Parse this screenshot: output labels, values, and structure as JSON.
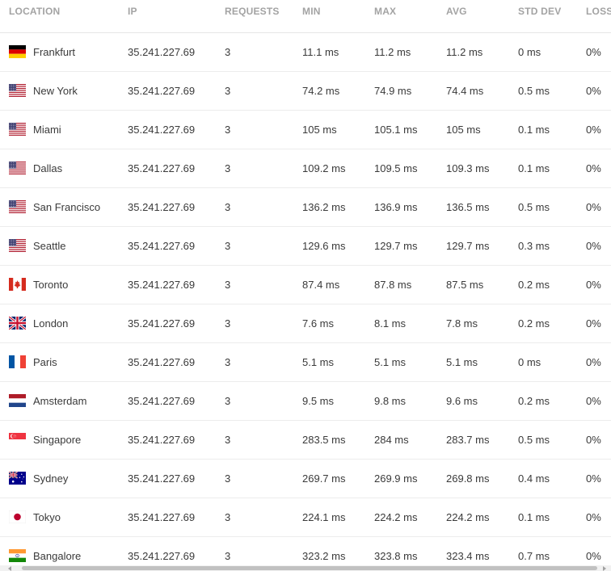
{
  "table": {
    "headers": {
      "location": "LOCATION",
      "ip": "IP",
      "requests": "REQUESTS",
      "min": "MIN",
      "max": "MAX",
      "avg": "AVG",
      "std_dev": "STD DEV",
      "loss": "LOSS"
    },
    "rows": [
      {
        "flag": "flag-germany-icon",
        "location": "Frankfurt",
        "ip": "35.241.227.69",
        "requests": "3",
        "min": "11.1 ms",
        "max": "11.2 ms",
        "avg": "11.2 ms",
        "std_dev": "0 ms",
        "loss": "0%"
      },
      {
        "flag": "flag-usa-icon",
        "location": "New York",
        "ip": "35.241.227.69",
        "requests": "3",
        "min": "74.2 ms",
        "max": "74.9 ms",
        "avg": "74.4 ms",
        "std_dev": "0.5 ms",
        "loss": "0%"
      },
      {
        "flag": "flag-usa-icon",
        "location": "Miami",
        "ip": "35.241.227.69",
        "requests": "3",
        "min": "105 ms",
        "max": "105.1 ms",
        "avg": "105 ms",
        "std_dev": "0.1 ms",
        "loss": "0%"
      },
      {
        "flag": "flag-usa-icon",
        "location": "Dallas",
        "ip": "35.241.227.69",
        "requests": "3",
        "min": "109.2 ms",
        "max": "109.5 ms",
        "avg": "109.3 ms",
        "std_dev": "0.1 ms",
        "loss": "0%"
      },
      {
        "flag": "flag-usa-icon",
        "location": "San Francisco",
        "ip": "35.241.227.69",
        "requests": "3",
        "min": "136.2 ms",
        "max": "136.9 ms",
        "avg": "136.5 ms",
        "std_dev": "0.5 ms",
        "loss": "0%"
      },
      {
        "flag": "flag-usa-icon",
        "location": "Seattle",
        "ip": "35.241.227.69",
        "requests": "3",
        "min": "129.6 ms",
        "max": "129.7 ms",
        "avg": "129.7 ms",
        "std_dev": "0.3 ms",
        "loss": "0%"
      },
      {
        "flag": "flag-canada-icon",
        "location": "Toronto",
        "ip": "35.241.227.69",
        "requests": "3",
        "min": "87.4 ms",
        "max": "87.8 ms",
        "avg": "87.5 ms",
        "std_dev": "0.2 ms",
        "loss": "0%"
      },
      {
        "flag": "flag-uk-icon",
        "location": "London",
        "ip": "35.241.227.69",
        "requests": "3",
        "min": "7.6 ms",
        "max": "8.1 ms",
        "avg": "7.8 ms",
        "std_dev": "0.2 ms",
        "loss": "0%"
      },
      {
        "flag": "flag-france-icon",
        "location": "Paris",
        "ip": "35.241.227.69",
        "requests": "3",
        "min": "5.1 ms",
        "max": "5.1 ms",
        "avg": "5.1 ms",
        "std_dev": "0 ms",
        "loss": "0%"
      },
      {
        "flag": "flag-netherlands-icon",
        "location": "Amsterdam",
        "ip": "35.241.227.69",
        "requests": "3",
        "min": "9.5 ms",
        "max": "9.8 ms",
        "avg": "9.6 ms",
        "std_dev": "0.2 ms",
        "loss": "0%"
      },
      {
        "flag": "flag-singapore-icon",
        "location": "Singapore",
        "ip": "35.241.227.69",
        "requests": "3",
        "min": "283.5 ms",
        "max": "284 ms",
        "avg": "283.7 ms",
        "std_dev": "0.5 ms",
        "loss": "0%"
      },
      {
        "flag": "flag-australia-icon",
        "location": "Sydney",
        "ip": "35.241.227.69",
        "requests": "3",
        "min": "269.7 ms",
        "max": "269.9 ms",
        "avg": "269.8 ms",
        "std_dev": "0.4 ms",
        "loss": "0%"
      },
      {
        "flag": "flag-japan-icon",
        "location": "Tokyo",
        "ip": "35.241.227.69",
        "requests": "3",
        "min": "224.1 ms",
        "max": "224.2 ms",
        "avg": "224.2 ms",
        "std_dev": "0.1 ms",
        "loss": "0%"
      },
      {
        "flag": "flag-india-icon",
        "location": "Bangalore",
        "ip": "35.241.227.69",
        "requests": "3",
        "min": "323.2 ms",
        "max": "323.8 ms",
        "avg": "323.4 ms",
        "std_dev": "0.7 ms",
        "loss": "0%"
      }
    ]
  },
  "colors": {
    "header_text": "#a3a3a3",
    "cell_text": "#3a3a3a",
    "row_divider": "#ececec",
    "scrollbar_thumb": "#c1c1c1"
  }
}
